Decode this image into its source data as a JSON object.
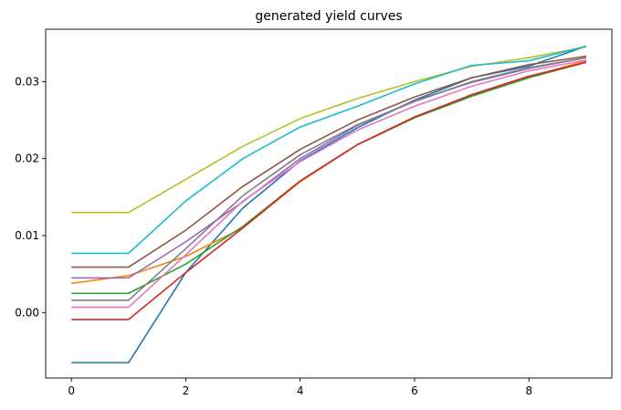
{
  "chart_data": {
    "type": "line",
    "title": "generated yield curves",
    "xlabel": "",
    "ylabel": "",
    "x": [
      0,
      1,
      2,
      3,
      4,
      5,
      6,
      7,
      8,
      9
    ],
    "xlim": [
      -0.45,
      9.45
    ],
    "ylim": [
      -0.0085,
      0.0368
    ],
    "x_ticks": [
      0,
      2,
      4,
      6,
      8
    ],
    "x_tick_labels": [
      "0",
      "2",
      "4",
      "6",
      "8"
    ],
    "y_ticks": [
      0.0,
      0.01,
      0.02,
      0.03
    ],
    "y_tick_labels": [
      "0.00",
      "0.01",
      "0.02",
      "0.03"
    ],
    "grid": false,
    "legend": "none",
    "series": [
      {
        "color": "#1f77b4",
        "values": [
          -0.0065,
          -0.0065,
          0.0052,
          0.0136,
          0.0197,
          0.024,
          0.0276,
          0.0305,
          0.032,
          0.0346
        ]
      },
      {
        "color": "#ff7f0e",
        "values": [
          0.0038,
          0.0048,
          0.0073,
          0.011,
          0.017,
          0.0218,
          0.0254,
          0.0282,
          0.0306,
          0.0327
        ]
      },
      {
        "color": "#2ca02c",
        "values": [
          0.0025,
          0.0025,
          0.0063,
          0.0112,
          0.0171,
          0.0218,
          0.0253,
          0.0281,
          0.0305,
          0.0325
        ]
      },
      {
        "color": "#d62728",
        "values": [
          -0.0009,
          -0.0009,
          0.0052,
          0.011,
          0.0171,
          0.0218,
          0.0254,
          0.0283,
          0.0307,
          0.0325
        ]
      },
      {
        "color": "#9467bd",
        "values": [
          0.0045,
          0.0045,
          0.0092,
          0.0144,
          0.02,
          0.0243,
          0.0275,
          0.0299,
          0.0317,
          0.0331
        ]
      },
      {
        "color": "#8c564b",
        "values": [
          0.0059,
          0.0059,
          0.0107,
          0.0164,
          0.0212,
          0.025,
          0.028,
          0.0305,
          0.0322,
          0.0333
        ]
      },
      {
        "color": "#e377c2",
        "values": [
          0.0007,
          0.0007,
          0.0075,
          0.0145,
          0.0196,
          0.0237,
          0.0268,
          0.0294,
          0.0314,
          0.0328
        ]
      },
      {
        "color": "#7f7f7f",
        "values": [
          0.0016,
          0.0016,
          0.0083,
          0.0152,
          0.0205,
          0.0244,
          0.0274,
          0.03,
          0.0318,
          0.0331
        ]
      },
      {
        "color": "#bcbd22",
        "values": [
          0.013,
          0.013,
          0.0173,
          0.0216,
          0.0252,
          0.0278,
          0.03,
          0.032,
          0.0331,
          0.0345
        ]
      },
      {
        "color": "#17becf",
        "values": [
          0.0077,
          0.0077,
          0.0145,
          0.02,
          0.0241,
          0.0268,
          0.0297,
          0.0321,
          0.0327,
          0.0346
        ]
      }
    ]
  }
}
